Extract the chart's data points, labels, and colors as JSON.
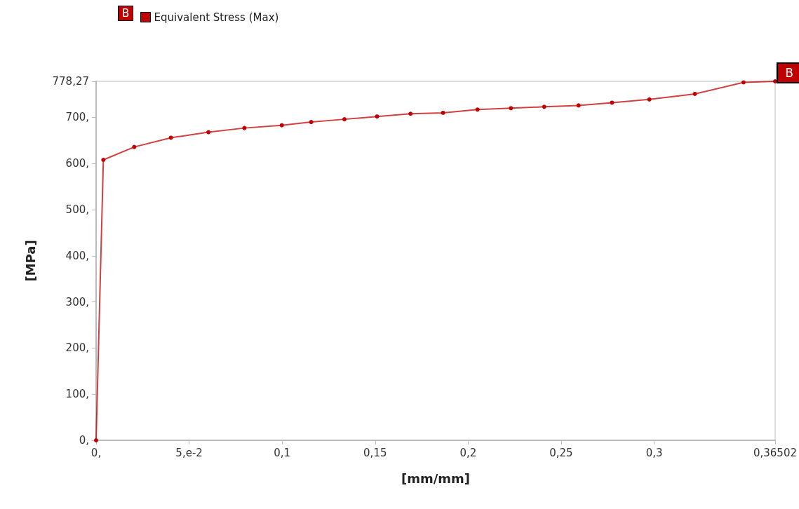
{
  "chart_data": {
    "type": "line",
    "xlabel": "[mm/mm]",
    "ylabel": "[MPa]",
    "x": [
      0,
      0.0039,
      0.0205,
      0.0402,
      0.0604,
      0.0797,
      0.0998,
      0.1156,
      0.1335,
      0.151,
      0.169,
      0.1865,
      0.205,
      0.223,
      0.2409,
      0.2593,
      0.2773,
      0.2974,
      0.3219,
      0.348,
      0.36502
    ],
    "series": [
      {
        "name": "Equivalent Stress (Max)",
        "color": "#c00000",
        "values": [
          0,
          608,
          636,
          656,
          668,
          677,
          683,
          690,
          696,
          702,
          708,
          710,
          717,
          720,
          723,
          726,
          732,
          739,
          751,
          776,
          778.27
        ]
      }
    ],
    "xlim": [
      0,
      0.36502
    ],
    "xticks": [
      {
        "value": 0,
        "label": "0,"
      },
      {
        "value": 0.05,
        "label": "5,e-2"
      },
      {
        "value": 0.1,
        "label": "0,1"
      },
      {
        "value": 0.15,
        "label": "0,15"
      },
      {
        "value": 0.2,
        "label": "0,2"
      },
      {
        "value": 0.25,
        "label": "0,25"
      },
      {
        "value": 0.3,
        "label": "0,3"
      },
      {
        "value": 0.36502,
        "label": "0,36502"
      }
    ],
    "ylim": [
      0,
      778.27
    ],
    "yticks": [
      {
        "value": 0,
        "label": "0,"
      },
      {
        "value": 100,
        "label": "100,"
      },
      {
        "value": 200,
        "label": "200,"
      },
      {
        "value": 300,
        "label": "300,"
      },
      {
        "value": 400,
        "label": "400,"
      },
      {
        "value": 500,
        "label": "500,"
      },
      {
        "value": 600,
        "label": "600,"
      },
      {
        "value": 700,
        "label": "700,"
      },
      {
        "value": 778.27,
        "label": "778,27"
      }
    ],
    "annotations": [
      {
        "text": "B",
        "x": 0.36502,
        "y": 778.27
      }
    ],
    "marker": "circle",
    "line_style": "solid",
    "legend": "top left",
    "grid": false
  }
}
